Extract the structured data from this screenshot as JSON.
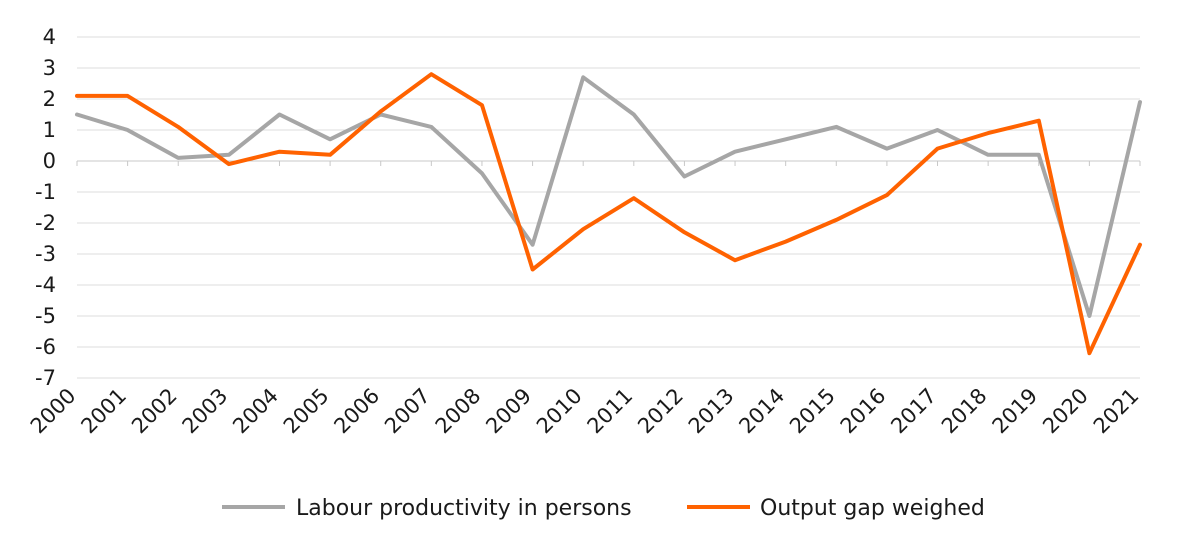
{
  "chart_data": {
    "type": "line",
    "title": "",
    "xlabel": "",
    "ylabel": "",
    "ylim": [
      -7,
      4
    ],
    "y_ticks": [
      "4",
      "3",
      "2",
      "1",
      "0",
      "-1",
      "-2",
      "-3",
      "-4",
      "-5",
      "-6",
      "-7"
    ],
    "categories": [
      "2000",
      "2001",
      "2002",
      "2003",
      "2004",
      "2005",
      "2006",
      "2007",
      "2008",
      "2009",
      "2010",
      "2011",
      "2012",
      "2013",
      "2014",
      "2015",
      "2016",
      "2017",
      "2018",
      "2019",
      "2020",
      "2021"
    ],
    "grid": "horizontal",
    "legend_position": "bottom",
    "series": [
      {
        "name": "Labour productivity in persons",
        "color": "#a6a6a6",
        "values": [
          1.5,
          1.0,
          0.1,
          0.2,
          1.5,
          0.7,
          1.5,
          1.1,
          -0.4,
          -2.7,
          2.7,
          1.5,
          -0.5,
          0.3,
          0.7,
          1.1,
          0.4,
          1.0,
          0.2,
          0.2,
          -5.0,
          1.9
        ]
      },
      {
        "name": "Output gap weighed",
        "color": "#ff6200",
        "values": [
          2.1,
          2.1,
          1.1,
          -0.1,
          0.3,
          0.2,
          1.6,
          2.8,
          1.8,
          -3.5,
          -2.2,
          -1.2,
          -2.3,
          -3.2,
          -2.6,
          -1.9,
          -1.1,
          0.4,
          0.9,
          1.3,
          -6.2,
          -2.7
        ]
      }
    ]
  }
}
